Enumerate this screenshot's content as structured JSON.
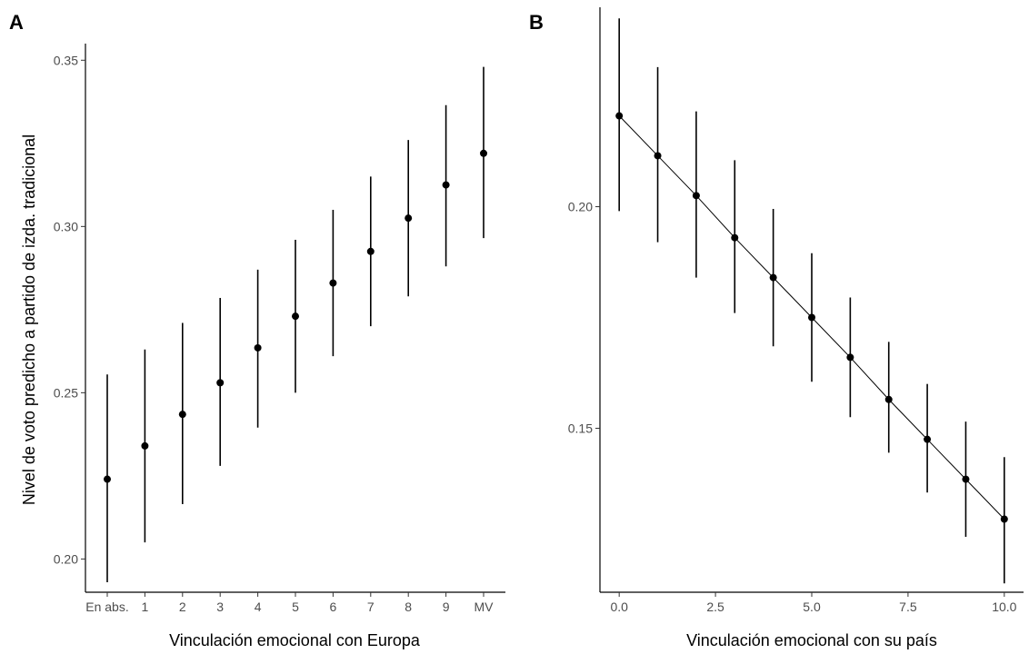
{
  "chart_data": [
    {
      "type": "scatter",
      "panel_label": "A",
      "title": "",
      "xlabel": "Vinculación emocional con Europa",
      "ylabel": "Nivel de voto predicho a partido de izda. tradicional",
      "categories": [
        "En abs.",
        "1",
        "2",
        "3",
        "4",
        "5",
        "6",
        "7",
        "8",
        "9",
        "MV"
      ],
      "values": [
        0.224,
        0.234,
        0.2435,
        0.253,
        0.2635,
        0.273,
        0.283,
        0.2925,
        0.3025,
        0.3125,
        0.322
      ],
      "lower": [
        0.193,
        0.205,
        0.2165,
        0.228,
        0.2395,
        0.25,
        0.261,
        0.27,
        0.279,
        0.288,
        0.2965
      ],
      "upper": [
        0.2555,
        0.263,
        0.271,
        0.2785,
        0.287,
        0.296,
        0.305,
        0.315,
        0.326,
        0.3365,
        0.348
      ],
      "ylim": [
        0.19,
        0.355
      ],
      "yticks": [
        0.2,
        0.25,
        0.3,
        0.35
      ],
      "ytick_labels": [
        "0.20",
        "0.25",
        "0.30",
        "0.35"
      ],
      "grid": false,
      "error_bars": true
    },
    {
      "type": "line",
      "panel_label": "B",
      "title": "",
      "xlabel": "Vinculación emocional con su país",
      "ylabel": "",
      "x": [
        0,
        1,
        2,
        3,
        4,
        5,
        6,
        7,
        8,
        9,
        10
      ],
      "values": [
        0.2205,
        0.2115,
        0.2025,
        0.193,
        0.184,
        0.175,
        0.166,
        0.1565,
        0.1475,
        0.1385,
        0.1295
      ],
      "lower": [
        0.199,
        0.192,
        0.184,
        0.176,
        0.1685,
        0.1605,
        0.1525,
        0.1445,
        0.1355,
        0.1255,
        0.115
      ],
      "upper": [
        0.2425,
        0.2315,
        0.2215,
        0.2105,
        0.1995,
        0.1895,
        0.1795,
        0.1695,
        0.16,
        0.1515,
        0.1435
      ],
      "xlim": [
        -0.5,
        10.5
      ],
      "ylim": [
        0.113,
        0.245
      ],
      "xticks": [
        0,
        2.5,
        5,
        7.5,
        10
      ],
      "xtick_labels": [
        "0.0",
        "2.5",
        "5.0",
        "7.5",
        "10.0"
      ],
      "yticks": [
        0.15,
        0.2
      ],
      "ytick_labels": [
        "0.15",
        "0.20"
      ],
      "grid": false,
      "error_bars": true,
      "fit_line": true
    }
  ]
}
